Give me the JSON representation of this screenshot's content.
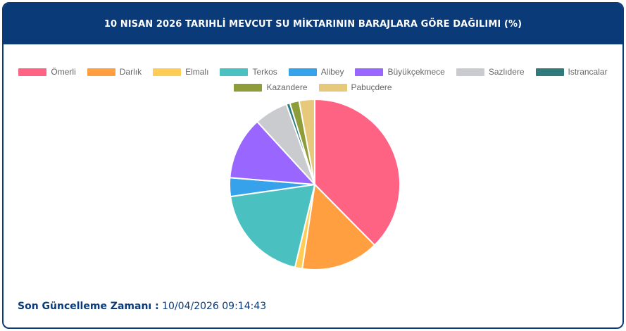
{
  "header": {
    "title": "10 NISAN 2026 TARIHLİ MEVCUT SU MİKTARININ BARAJLARA GÖRE DAĞILIMI (%)"
  },
  "footer": {
    "label": "Son Güncelleme Zamanı :",
    "value": " 10/04/2026 09:14:43"
  },
  "chart_data": {
    "type": "pie",
    "title": "10 NISAN 2026 TARIHLİ MEVCUT SU MİKTARININ BARAJLARA GÖRE DAĞILIMI (%)",
    "legend_position": "top",
    "categories": [
      "Ömerli",
      "Darlık",
      "Elmalı",
      "Terkos",
      "Alibey",
      "Büyükçekmece",
      "Sazlıdere",
      "Istrancalar",
      "Kazandere",
      "Pabuçdere"
    ],
    "values": [
      38.2,
      15.0,
      1.4,
      19.3,
      3.6,
      12.1,
      6.5,
      0.7,
      1.8,
      3.0
    ],
    "colors": [
      "#ff6384",
      "#ff9f40",
      "#ffcd56",
      "#4bc0c0",
      "#36a2eb",
      "#9966ff",
      "#c9cbcf",
      "#2f7a7a",
      "#8f9c3a",
      "#e6c97a"
    ]
  }
}
